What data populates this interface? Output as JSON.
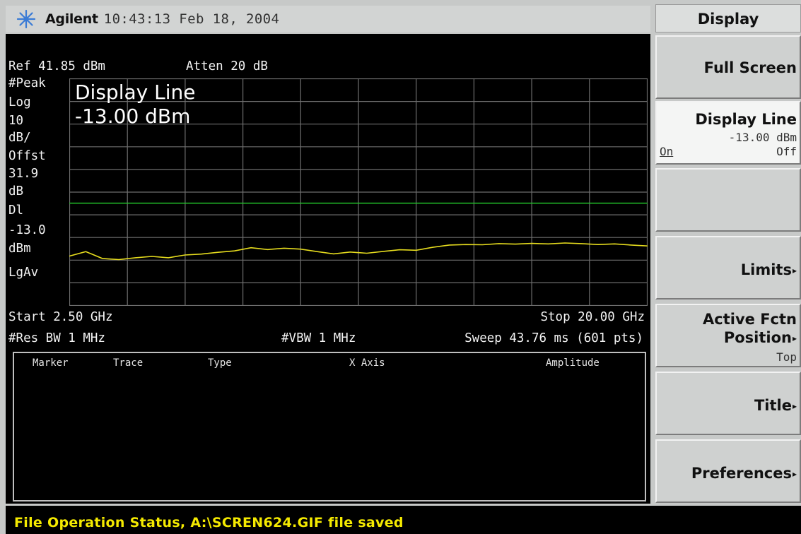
{
  "header": {
    "icon": "agilent-starburst-icon",
    "brand": "Agilent",
    "datetime": "10:43:13  Feb 18, 2004"
  },
  "screen": {
    "ref_level": "Ref 41.85 dBm",
    "attenuation": "Atten 20 dB",
    "left_annotations": [
      "#Peak",
      "Log",
      "10",
      "dB/",
      "Offst",
      "31.9",
      "dB",
      "Dl",
      "-13.0",
      "dBm",
      "LgAv"
    ],
    "active_function": {
      "line1": "Display Line",
      "line2": "-13.00 dBm"
    },
    "start_freq": "Start 2.50 GHz",
    "stop_freq": "Stop 20.00 GHz",
    "res_bw": "#Res BW 1 MHz",
    "vbw": "#VBW 1 MHz",
    "sweep": "Sweep 43.76 ms (601 pts)"
  },
  "marker_table": {
    "headers": [
      "Marker",
      "Trace",
      "Type",
      "X Axis",
      "Amplitude"
    ]
  },
  "softkey_menu": {
    "title": "Display",
    "keys": [
      {
        "label": "Full Screen"
      },
      {
        "label": "Display Line",
        "value": "-13.00 dBm",
        "on": "On",
        "off": "Off"
      },
      {
        "label": ""
      },
      {
        "label": "Limits",
        "arrow": "▸"
      },
      {
        "label": "Active Fctn",
        "label2": "Position",
        "arrow": "▸",
        "value": "Top"
      },
      {
        "label": "Title",
        "arrow": "▸"
      },
      {
        "label": "Preferences",
        "arrow": "▸"
      }
    ]
  },
  "status_bar": {
    "text": "File Operation Status, A:\\SCREN624.GIF file saved"
  },
  "colors": {
    "display_line": "#22c22a",
    "trace": "#e6dc1e",
    "status_text": "#f5ea00",
    "graticule": "#6e6e6e"
  },
  "chart_data": {
    "type": "line",
    "x_range_ghz": [
      2.5,
      20.0
    ],
    "y_ref_dbm": 41.85,
    "y_scale_db_per_div": 10,
    "y_divisions": 10,
    "display_line_dbm": -13.0,
    "series": [
      {
        "x": [
          2.5,
          3.0,
          3.5,
          4.0,
          4.5,
          5.0,
          5.5,
          6.0,
          6.5,
          7.0,
          7.5,
          8.0,
          8.5,
          9.0,
          9.5,
          10.0,
          10.5,
          11.0,
          11.5,
          12.0,
          12.5,
          13.0,
          13.5,
          14.0,
          14.5,
          15.0,
          15.5,
          16.0,
          16.5,
          17.0,
          17.5,
          18.0,
          18.5,
          19.0,
          19.5,
          20.0
        ],
        "y": [
          -36.3,
          -34.3,
          -37.3,
          -37.8,
          -37.0,
          -36.4,
          -37.0,
          -35.8,
          -35.4,
          -34.6,
          -34.0,
          -32.6,
          -33.4,
          -32.8,
          -33.2,
          -34.3,
          -35.3,
          -34.5,
          -35.0,
          -34.2,
          -33.5,
          -33.7,
          -32.4,
          -31.4,
          -31.2,
          -31.3,
          -30.8,
          -31.0,
          -30.7,
          -30.9,
          -30.5,
          -30.8,
          -31.2,
          -30.9,
          -31.4,
          -31.8
        ]
      }
    ]
  }
}
